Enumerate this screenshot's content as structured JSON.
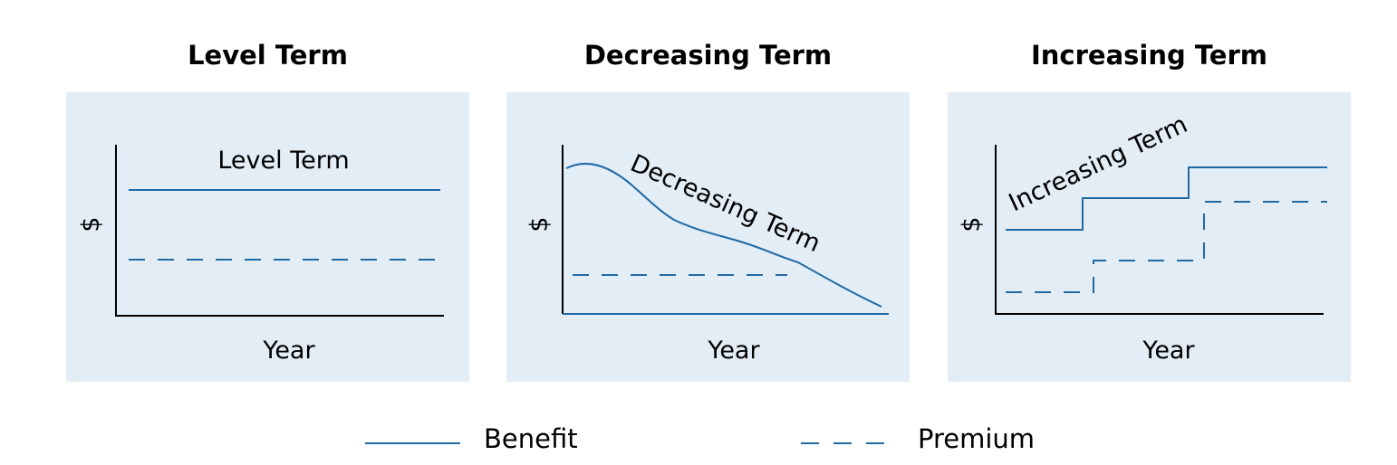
{
  "colors": {
    "panel_bg": "#e3edf5",
    "line": "#1f6aa5",
    "axis": "#000000"
  },
  "panels": [
    {
      "title": "Level Term",
      "curve_label": "Level Term",
      "xlabel": "Year",
      "ylabel": "$"
    },
    {
      "title": "Decreasing Term",
      "curve_label": "Decreasing Term",
      "xlabel": "Year",
      "ylabel": "$"
    },
    {
      "title": "Increasing Term",
      "curve_label": "Increasing Term",
      "xlabel": "Year",
      "ylabel": "$"
    }
  ],
  "legend": [
    {
      "label": "Benefit",
      "style": "solid"
    },
    {
      "label": "Premium",
      "style": "dashed"
    }
  ]
}
